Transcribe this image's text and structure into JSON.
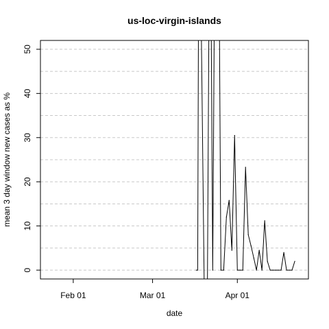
{
  "chart_data": {
    "type": "line",
    "title": "us-loc-virgin-islands",
    "xlabel": "date",
    "ylabel": "mean  3  day window new cases as %",
    "x_ticks": [
      {
        "label": "Feb 01",
        "day": 12
      },
      {
        "label": "Mar 01",
        "day": 41
      },
      {
        "label": "Apr 01",
        "day": 72
      }
    ],
    "xlim": [
      0,
      98
    ],
    "y_ticks": [
      0,
      10,
      20,
      30,
      40,
      50
    ],
    "ylim": [
      -2,
      52
    ],
    "grid_y": [
      0,
      5,
      10,
      15,
      20,
      25,
      30,
      35,
      40,
      45,
      50
    ],
    "grid": true,
    "clip_note": "values above 52 are clipped at the top of the plot",
    "series": [
      {
        "name": "us-loc-virgin-islands",
        "color": "#000000",
        "points": [
          [
            57,
            0
          ],
          [
            57.5,
            0
          ],
          [
            58,
            100
          ],
          [
            60,
            -10
          ],
          [
            61,
            -10
          ],
          [
            62,
            100
          ],
          [
            63,
            0
          ],
          [
            64,
            100
          ],
          [
            65,
            100
          ],
          [
            66,
            0
          ],
          [
            67,
            0
          ],
          [
            68,
            12
          ],
          [
            69,
            15.8
          ],
          [
            70,
            4.5
          ],
          [
            71,
            30.5
          ],
          [
            72,
            0
          ],
          [
            73,
            0
          ],
          [
            74,
            0
          ],
          [
            75,
            23.3
          ],
          [
            76,
            8
          ],
          [
            77,
            5.5
          ],
          [
            78,
            2.8
          ],
          [
            79,
            0
          ],
          [
            80,
            4.5
          ],
          [
            81,
            0
          ],
          [
            82,
            11.2
          ],
          [
            83,
            2
          ],
          [
            84,
            0
          ],
          [
            85,
            0
          ],
          [
            86,
            0
          ],
          [
            87,
            0
          ],
          [
            88,
            0
          ],
          [
            89,
            4
          ],
          [
            90,
            0
          ],
          [
            91,
            0
          ],
          [
            92,
            0
          ],
          [
            93,
            2
          ]
        ]
      }
    ]
  }
}
